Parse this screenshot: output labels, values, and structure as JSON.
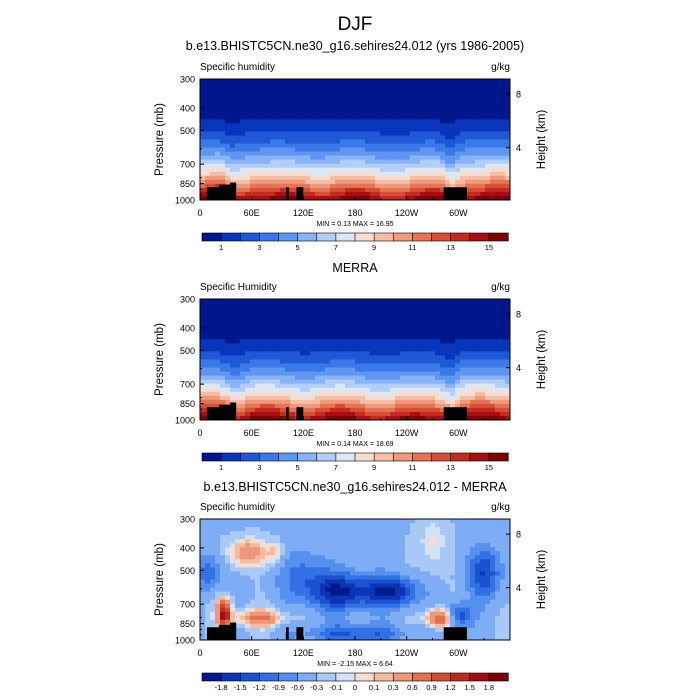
{
  "figure": {
    "title": "DJF"
  },
  "colorbars": {
    "humidity": {
      "labels": [
        "1",
        "3",
        "5",
        "7",
        "9",
        "11",
        "13",
        "15"
      ],
      "colors": [
        "#00178b",
        "#0735bb",
        "#1f57d6",
        "#3b78e8",
        "#5f96f2",
        "#88b3f7",
        "#b3cdf6",
        "#dde6f5",
        "#f6ded2",
        "#f6bea6",
        "#f0997b",
        "#e57355",
        "#d74e36",
        "#c42b20",
        "#a70f14",
        "#7d0006"
      ]
    },
    "difference": {
      "labels": [
        "-1.8",
        "-1.5",
        "-1.2",
        "-0.9",
        "-0.6",
        "-0.3",
        "-0.1",
        "0",
        "0.1",
        "0.3",
        "0.6",
        "0.9",
        "1.2",
        "1.5",
        "1.8"
      ],
      "colors": [
        "#001a8a",
        "#0a35b5",
        "#1b52d0",
        "#3270e4",
        "#5590ef",
        "#7eadf5",
        "#a9c9f7",
        "#d3e2f7",
        "#f7ddd0",
        "#f5bca2",
        "#ef9779",
        "#e27152",
        "#d24c34",
        "#bb2a1e",
        "#9e0f13",
        "#760008"
      ]
    }
  },
  "chart_data": [
    {
      "type": "heatmap",
      "title": "b.e13.BHISTC5CN.ne30_g16.sehires24.012 (yrs 1986-2005)",
      "left_label": "Specific humidity",
      "right_label": "g/kg",
      "ylabel": "Pressure (mb)",
      "ylabel_right": "Height (km)",
      "xticks": [
        "0",
        "60E",
        "120E",
        "180",
        "120W",
        "60W"
      ],
      "xlim": [
        0,
        360
      ],
      "yticks": [
        "300",
        "400",
        "500",
        "700",
        "850",
        "1000"
      ],
      "ylim": [
        1000,
        300
      ],
      "yticks_right": [
        "8",
        "4"
      ],
      "stats": "MIN =   0.13  MAX =  16.95",
      "colorbar": "humidity",
      "min": 0.13,
      "max": 16.95
    },
    {
      "type": "heatmap",
      "title": "MERRA",
      "left_label": "Specific Humidity",
      "right_label": "g/kg",
      "ylabel": "Pressure (mb)",
      "ylabel_right": "Height (km)",
      "xticks": [
        "0",
        "60E",
        "120E",
        "180",
        "120W",
        "60W"
      ],
      "xlim": [
        0,
        360
      ],
      "yticks": [
        "300",
        "400",
        "500",
        "700",
        "850",
        "1000"
      ],
      "ylim": [
        1000,
        300
      ],
      "yticks_right": [
        "8",
        "4"
      ],
      "stats": "MIN =   0.14  MAX =  18.69",
      "colorbar": "humidity",
      "min": 0.14,
      "max": 18.69
    },
    {
      "type": "heatmap",
      "title": "b.e13.BHISTC5CN.ne30_g16.sehires24.012 - MERRA",
      "left_label": "Specific humidity",
      "right_label": "g/kg",
      "ylabel": "Pressure (mb)",
      "ylabel_right": "Height (km)",
      "xticks": [
        "0",
        "60E",
        "120E",
        "180",
        "120W",
        "60W"
      ],
      "xlim": [
        0,
        360
      ],
      "yticks": [
        "300",
        "400",
        "500",
        "700",
        "850",
        "1000"
      ],
      "ylim": [
        1000,
        300
      ],
      "yticks_right": [
        "8",
        "4"
      ],
      "stats": "MIN =  -2.15  MAX =   6.64",
      "colorbar": "difference",
      "min": -2.15,
      "max": 6.64
    }
  ]
}
